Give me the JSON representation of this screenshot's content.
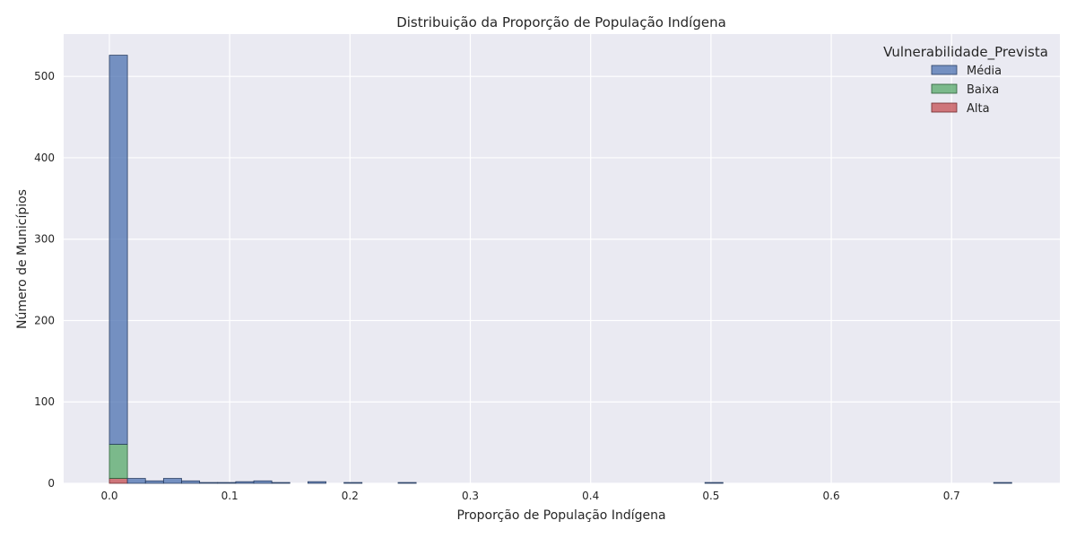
{
  "chart_data": {
    "type": "bar",
    "title": "Distribuição da Proporção de População Indígena",
    "xlabel": "Proporção de População Indígena",
    "ylabel": "Número de Municípios",
    "xlim": [
      -0.038,
      0.79
    ],
    "ylim": [
      0,
      552
    ],
    "xticks": [
      0.0,
      0.1,
      0.2,
      0.3,
      0.4,
      0.5,
      0.6,
      0.7
    ],
    "xtick_labels": [
      "0.0",
      "0.1",
      "0.2",
      "0.3",
      "0.4",
      "0.5",
      "0.6",
      "0.7"
    ],
    "yticks": [
      0,
      100,
      200,
      300,
      400,
      500
    ],
    "ytick_labels": [
      "0",
      "100",
      "200",
      "300",
      "400",
      "500"
    ],
    "grid": true,
    "stacked": true,
    "bin_width": 0.015,
    "bin_start": 0.0,
    "legend": {
      "title": "Vulnerabilidade_Prevista",
      "placement": "top-right",
      "entries": [
        "Média",
        "Baixa",
        "Alta"
      ]
    },
    "series": [
      {
        "name": "Alta",
        "color": "#c44e52",
        "values": [
          6,
          0,
          0,
          0,
          0,
          0,
          0,
          0,
          0,
          0,
          0,
          0,
          0,
          0,
          0,
          0,
          0,
          0,
          0,
          0,
          0,
          0,
          0,
          0,
          0,
          0,
          0,
          0,
          0,
          0,
          0,
          0,
          0,
          0,
          0,
          0,
          0,
          0,
          0,
          0,
          0,
          0,
          0,
          0,
          0,
          0,
          0,
          0,
          0,
          0
        ]
      },
      {
        "name": "Baixa",
        "color": "#55a868",
        "values": [
          42,
          0,
          0,
          0,
          0,
          0,
          0,
          0,
          0,
          0,
          0,
          0,
          0,
          0,
          0,
          0,
          0,
          0,
          0,
          0,
          0,
          0,
          0,
          0,
          0,
          0,
          0,
          0,
          0,
          0,
          0,
          0,
          0,
          0,
          0,
          0,
          0,
          0,
          0,
          0,
          0,
          0,
          0,
          0,
          0,
          0,
          0,
          0,
          0,
          0
        ]
      },
      {
        "name": "Média",
        "color": "#4c72b0",
        "values": [
          478,
          6,
          3,
          6,
          3,
          1,
          1,
          2,
          3,
          1,
          0,
          2,
          0,
          1,
          0,
          0,
          1,
          0,
          0,
          0,
          0,
          0,
          0,
          0,
          0,
          0,
          0,
          0,
          0,
          0,
          0,
          0,
          0,
          1,
          0,
          0,
          0,
          0,
          0,
          0,
          0,
          0,
          0,
          0,
          0,
          0,
          0,
          0,
          0,
          1
        ]
      }
    ]
  }
}
